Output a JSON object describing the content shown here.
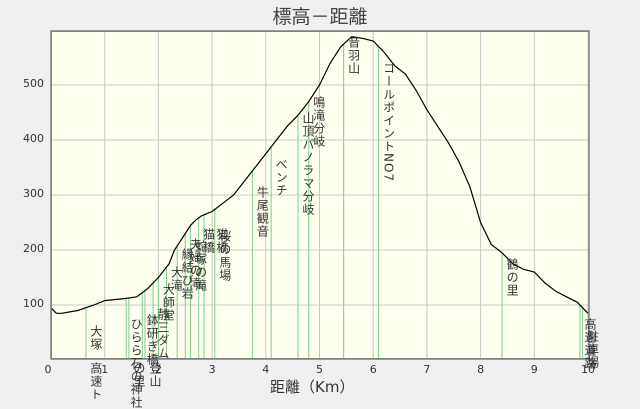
{
  "chart_data": {
    "type": "line",
    "title": "標高－距離",
    "xlabel": "距離（Km）",
    "ylabel": "",
    "xlim": [
      0,
      10
    ],
    "ylim": [
      0,
      600
    ],
    "grid": true,
    "x_ticks": [
      "0",
      "1",
      "2",
      "3",
      "4",
      "5",
      "6",
      "7",
      "8",
      "9",
      "10"
    ],
    "y_ticks": [
      "100",
      "200",
      "300",
      "400",
      "500"
    ],
    "series": [
      {
        "name": "標高",
        "x": [
          0,
          0.1,
          0.2,
          0.5,
          0.8,
          1.0,
          1.2,
          1.4,
          1.6,
          1.8,
          2.0,
          2.2,
          2.3,
          2.4,
          2.5,
          2.6,
          2.7,
          2.8,
          3.0,
          3.2,
          3.4,
          3.6,
          3.8,
          4.0,
          4.2,
          4.4,
          4.6,
          4.8,
          5.0,
          5.2,
          5.4,
          5.6,
          5.8,
          6.0,
          6.2,
          6.4,
          6.6,
          6.8,
          7.0,
          7.2,
          7.4,
          7.6,
          7.8,
          8.0,
          8.2,
          8.4,
          8.6,
          8.8,
          9.0,
          9.2,
          9.4,
          9.6,
          9.8,
          10.0
        ],
        "values": [
          95,
          85,
          85,
          90,
          100,
          108,
          110,
          112,
          115,
          130,
          150,
          175,
          200,
          215,
          230,
          245,
          255,
          262,
          270,
          285,
          300,
          325,
          350,
          375,
          400,
          425,
          445,
          470,
          500,
          540,
          570,
          588,
          585,
          580,
          560,
          535,
          520,
          490,
          455,
          425,
          395,
          360,
          315,
          250,
          210,
          195,
          175,
          165,
          160,
          140,
          125,
          115,
          105,
          85
        ]
      }
    ],
    "waypoints": [
      {
        "x": 0.65,
        "label": "大塚"
      },
      {
        "x": 0.65,
        "label": "高速ト"
      },
      {
        "x": 1.4,
        "label": "ひらら石の神社"
      },
      {
        "x": 1.45,
        "label": "の里"
      },
      {
        "x": 1.7,
        "label": "鉢研ぎ橋"
      },
      {
        "x": 1.75,
        "label": "登山"
      },
      {
        "x": 1.9,
        "label": "静三ダム"
      },
      {
        "x": 2.0,
        "label": "大師堂"
      },
      {
        "x": 2.15,
        "label": "大滝"
      },
      {
        "x": 2.35,
        "label": "縁結び岩"
      },
      {
        "x": 2.5,
        "label": "夫婦の滝"
      },
      {
        "x": 2.6,
        "label": "蛇塚の滝"
      },
      {
        "x": 2.75,
        "label": "猫橋"
      },
      {
        "x": 2.85,
        "label": "猫橋"
      },
      {
        "x": 3.05,
        "label": "桜の馬場"
      },
      {
        "x": 3.75,
        "label": "牛尾観音"
      },
      {
        "x": 4.1,
        "label": "ベンチ"
      },
      {
        "x": 4.6,
        "label": "山頂パノラマ分岐"
      },
      {
        "x": 4.8,
        "label": "鳴滝分岐"
      },
      {
        "x": 5.45,
        "label": "音羽山"
      },
      {
        "x": 6.1,
        "label": "コールポイントNO7"
      },
      {
        "x": 8.4,
        "label": "鶴の里"
      },
      {
        "x": 9.85,
        "label": "高速道路"
      },
      {
        "x": 9.9,
        "label": "駐車場"
      }
    ]
  },
  "colors": {
    "plot_bg": "#fffff0",
    "grid": "#c8c8c8",
    "line": "#000000",
    "waypoint": "#7ccf8a",
    "frame": "#808080",
    "page_bg": "#f0f0f0"
  }
}
